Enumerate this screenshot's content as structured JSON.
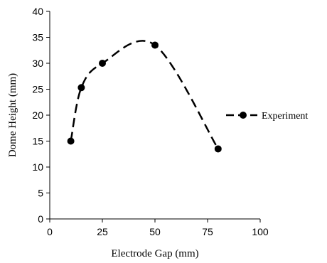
{
  "chart_data": {
    "type": "line",
    "xlabel": "Electrode Gap (mm)",
    "ylabel": "Dome Height (mm)",
    "xlim": [
      0,
      100
    ],
    "ylim": [
      0,
      40
    ],
    "xticks": [
      0,
      25,
      50,
      75,
      100
    ],
    "yticks": [
      0,
      5,
      10,
      15,
      20,
      25,
      30,
      35,
      40
    ],
    "grid": false,
    "legend_position": "right",
    "series": [
      {
        "name": "Experiment",
        "line_style": "dashed",
        "marker": "filled-circle",
        "color": "#000000",
        "points": [
          {
            "x": 10,
            "y": 15
          },
          {
            "x": 15,
            "y": 25.3
          },
          {
            "x": 25,
            "y": 30
          },
          {
            "x": 50,
            "y": 33.5
          },
          {
            "x": 80,
            "y": 13.5
          }
        ]
      }
    ]
  }
}
